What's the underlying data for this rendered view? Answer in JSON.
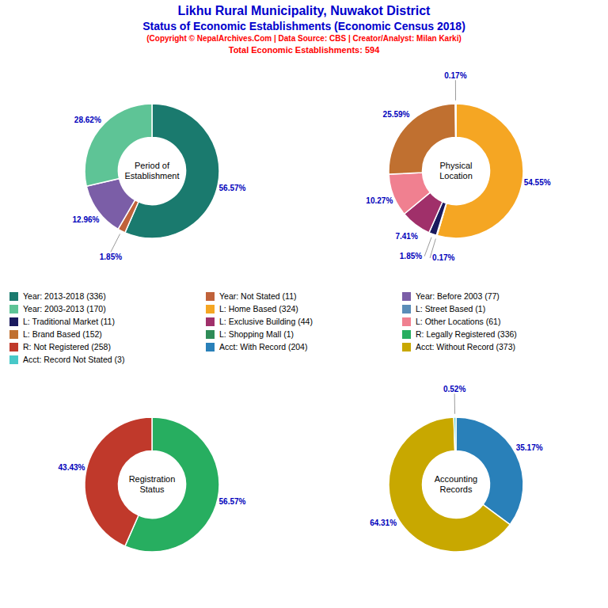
{
  "title": "Likhu Rural Municipality, Nuwakot District",
  "subtitle": "Status of Economic Establishments (Economic Census 2018)",
  "annotations": [
    "(Copyright © NepalArchives.Com | Data Source: CBS | Creator/Analyst: Milan Karki)",
    "Total Economic Establishments: 594"
  ],
  "legend": "center",
  "chart_data": [
    {
      "type": "pie",
      "title": "Period of\nEstablishment",
      "categories": [
        "Year: 2013-2018 (336)",
        "Year: Not Stated (11)",
        "Year: Before 2003 (77)",
        "Year: 2003-2013 (170)"
      ],
      "values": [
        56.57,
        1.85,
        12.96,
        28.62
      ],
      "value_labels": [
        "56.57%",
        "1.85%",
        "12.96%",
        "28.62%"
      ],
      "colors": [
        "#1a7a6e",
        "#c0623a",
        "#7b5ea7",
        "#5ec496"
      ],
      "data_labels": true
    },
    {
      "type": "pie",
      "title": "Physical\nLocation",
      "categories": [
        "L: Home Based (324)",
        "L: Street Based (1)",
        "L: Traditional Market (11)",
        "L: Exclusive Building (44)",
        "L: Other Locations (61)",
        "L: Brand Based (152)",
        "L: Shopping Mall (1)"
      ],
      "values": [
        54.55,
        0.17,
        1.85,
        7.41,
        10.27,
        25.59,
        0.17
      ],
      "value_labels": [
        "54.55%",
        "0.17%",
        "1.85%",
        "7.41%",
        "10.27%",
        "25.59%",
        "0.17%"
      ],
      "colors": [
        "#f5a623",
        "#5b8db8",
        "#1a1a5e",
        "#a0306a",
        "#f08090",
        "#c07030",
        "#2e8b57"
      ],
      "data_labels": true
    },
    {
      "type": "pie",
      "title": "Registration\nStatus",
      "categories": [
        "R: Legally Registered (336)",
        "R: Not Registered (258)"
      ],
      "values": [
        56.57,
        43.43
      ],
      "value_labels": [
        "56.57%",
        "43.43%"
      ],
      "colors": [
        "#27ae60",
        "#c0392b"
      ],
      "data_labels": true
    },
    {
      "type": "pie",
      "title": "Accounting\nRecords",
      "categories": [
        "Acct: With Record (204)",
        "Acct: Without Record (373)",
        "Acct: Record Not Stated (3)"
      ],
      "values": [
        35.17,
        64.31,
        0.52
      ],
      "value_labels": [
        "35.17%",
        "64.31%",
        "0.52%"
      ],
      "colors": [
        "#2980b9",
        "#c8a800",
        "#48c8c8"
      ],
      "data_labels": true
    }
  ]
}
